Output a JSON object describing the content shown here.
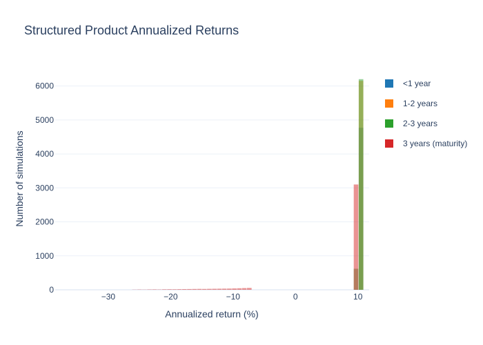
{
  "chart_data": {
    "type": "bar",
    "title": "Structured Product Annualized Returns",
    "xlabel": "Annualized return (%)",
    "ylabel": "Number of simulations",
    "xlim": [
      -38.5,
      11.8
    ],
    "ylim": [
      0,
      6500
    ],
    "x_ticks": [
      {
        "value": -30,
        "label": "−30"
      },
      {
        "value": -20,
        "label": "−20"
      },
      {
        "value": -10,
        "label": "−10"
      },
      {
        "value": 0,
        "label": "0"
      },
      {
        "value": 10,
        "label": "10"
      }
    ],
    "y_ticks": [
      {
        "value": 0,
        "label": "0"
      },
      {
        "value": 1000,
        "label": "1000"
      },
      {
        "value": 2000,
        "label": "2000"
      },
      {
        "value": 3000,
        "label": "3000"
      },
      {
        "value": 4000,
        "label": "4000"
      },
      {
        "value": 5000,
        "label": "5000"
      },
      {
        "value": 6000,
        "label": "6000"
      }
    ],
    "bin_width": 0.8,
    "grid": true,
    "legend_position": "right",
    "barmode": "overlay",
    "opacity": 0.5,
    "series": [
      {
        "name": "<1 year",
        "color": "#1f77b4",
        "bars": [
          {
            "x": 10.5,
            "y": 4770
          }
        ]
      },
      {
        "name": "1-2 years",
        "color": "#ff7f0e",
        "bars": [
          {
            "x": 10.5,
            "y": 6150
          }
        ]
      },
      {
        "name": "2-3 years",
        "color": "#2ca02c",
        "bars": [
          {
            "x": 9.7,
            "y": 620
          },
          {
            "x": 10.5,
            "y": 6200
          }
        ]
      },
      {
        "name": "3 years (maturity)",
        "color": "#d62728",
        "bars": [
          {
            "x": -25.8,
            "y": 5
          },
          {
            "x": -25.0,
            "y": 8
          },
          {
            "x": -24.2,
            "y": 6
          },
          {
            "x": -23.4,
            "y": 10
          },
          {
            "x": -22.6,
            "y": 12
          },
          {
            "x": -21.8,
            "y": 9
          },
          {
            "x": -21.0,
            "y": 14
          },
          {
            "x": -20.2,
            "y": 16
          },
          {
            "x": -19.4,
            "y": 15
          },
          {
            "x": -18.6,
            "y": 18
          },
          {
            "x": -17.8,
            "y": 20
          },
          {
            "x": -17.0,
            "y": 22
          },
          {
            "x": -16.2,
            "y": 24
          },
          {
            "x": -15.4,
            "y": 26
          },
          {
            "x": -14.6,
            "y": 25
          },
          {
            "x": -13.8,
            "y": 28
          },
          {
            "x": -13.0,
            "y": 30
          },
          {
            "x": -12.2,
            "y": 32
          },
          {
            "x": -11.4,
            "y": 34
          },
          {
            "x": -10.6,
            "y": 36
          },
          {
            "x": -9.8,
            "y": 40
          },
          {
            "x": -9.0,
            "y": 45
          },
          {
            "x": -8.2,
            "y": 50
          },
          {
            "x": -7.4,
            "y": 55
          },
          {
            "x": 9.7,
            "y": 3100
          }
        ]
      }
    ]
  }
}
